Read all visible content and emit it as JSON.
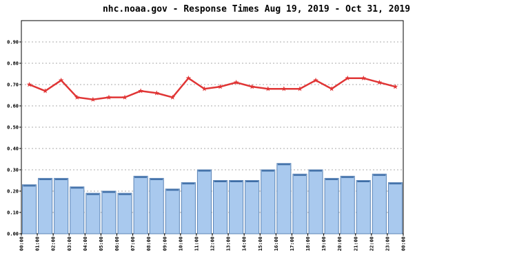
{
  "chart_data": {
    "type": "bar",
    "title": "nhc.noaa.gov - Response Times Aug 19, 2019 - Oct 31, 2019",
    "xticks": [
      "00:00",
      "01:00",
      "02:00",
      "03:00",
      "04:00",
      "05:00",
      "06:00",
      "07:00",
      "08:00",
      "09:00",
      "10:00",
      "11:00",
      "12:00",
      "13:00",
      "14:00",
      "15:00",
      "16:00",
      "17:00",
      "18:00",
      "19:00",
      "20:00",
      "21:00",
      "22:00",
      "23:00",
      "00:00"
    ],
    "ylim": [
      0,
      1
    ],
    "yticks": [
      {
        "value": 0,
        "label": "0.00"
      },
      {
        "value": 0.1,
        "label": "0.10"
      },
      {
        "value": 0.2,
        "label": "0.20"
      },
      {
        "value": 0.3,
        "label": "0.30"
      },
      {
        "value": 0.4,
        "label": "0.40"
      },
      {
        "value": 0.5,
        "label": "0.50"
      },
      {
        "value": 0.6,
        "label": "0.60"
      },
      {
        "value": 0.7,
        "label": "0.70"
      },
      {
        "value": 0.8,
        "label": "0.80"
      },
      {
        "value": 0.9,
        "label": "0.90"
      }
    ],
    "grid": true,
    "series": [
      {
        "type": "bar",
        "color": "#a9c9ee",
        "values": [
          0.23,
          0.26,
          0.26,
          0.22,
          0.19,
          0.2,
          0.19,
          0.27,
          0.26,
          0.21,
          0.24,
          0.3,
          0.25,
          0.25,
          0.25,
          0.3,
          0.33,
          0.28,
          0.3,
          0.26,
          0.27,
          0.25,
          0.28,
          0.24
        ]
      },
      {
        "type": "line",
        "color": "#e03535",
        "values": [
          0.7,
          0.67,
          0.72,
          0.64,
          0.63,
          0.64,
          0.64,
          0.67,
          0.66,
          0.64,
          0.73,
          0.68,
          0.69,
          0.71,
          0.69,
          0.68,
          0.68,
          0.68,
          0.72,
          0.68,
          0.73,
          0.73,
          0.71,
          0.69
        ]
      }
    ]
  }
}
